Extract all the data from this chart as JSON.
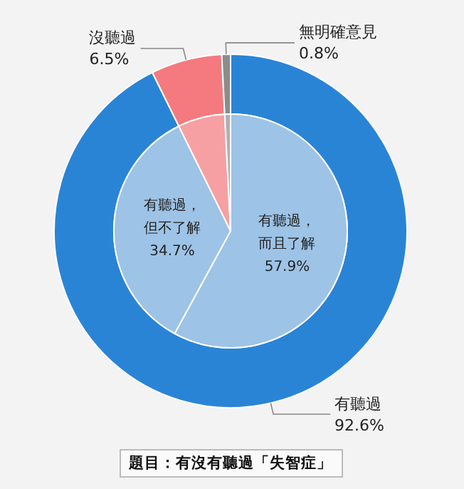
{
  "chart_data": [
    {
      "type": "donut",
      "categories": [
        "有聽過",
        "沒聽過",
        "無明確意見"
      ],
      "values": [
        92.6,
        6.5,
        0.8
      ],
      "value_labels": [
        "92.6%",
        "6.5%",
        "0.8%"
      ],
      "colors": [
        "#2a84d6",
        "#f47a7f",
        "#8c8c8c"
      ],
      "annotations": [
        "題目：有沒有聽過「失智症」"
      ]
    },
    {
      "type": "pie",
      "categories": [
        "有聽過，而且了解",
        "有聽過，但不了解",
        null,
        null
      ],
      "values": [
        57.9,
        34.7,
        6.5,
        0.8
      ],
      "value_labels": [
        "57.9%",
        "34.7%",
        null,
        null
      ],
      "colors": [
        "#9dc3e6",
        "#9dc3e6",
        "#f6a0a3",
        "#b0b0b0"
      ]
    }
  ]
}
